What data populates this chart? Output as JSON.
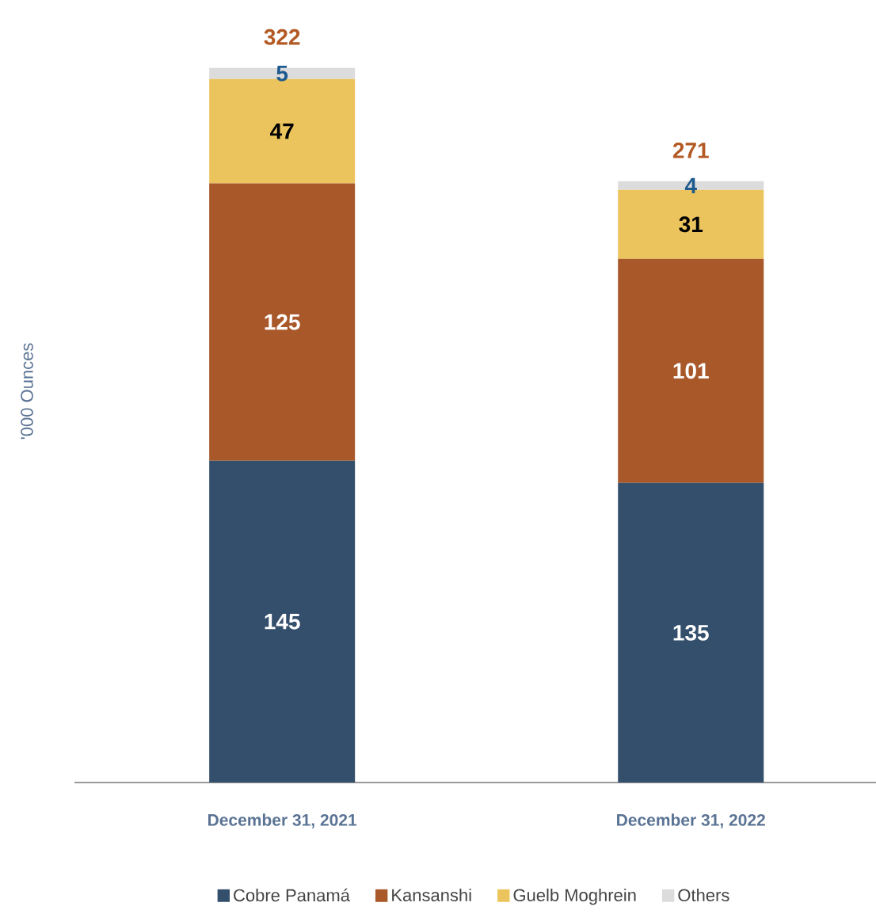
{
  "chart_data": {
    "type": "bar",
    "stacked": true,
    "ylabel": "'000 Ounces",
    "categories": [
      "December 31, 2021",
      "December 31, 2022"
    ],
    "series": [
      {
        "name": "Cobre Panamá",
        "color": "#344f6c",
        "values": [
          145,
          135
        ]
      },
      {
        "name": "Kansanshi",
        "color": "#a9582a",
        "values": [
          125,
          101
        ]
      },
      {
        "name": "Guelb Moghrein",
        "color": "#ecc45d",
        "values": [
          47,
          31
        ]
      },
      {
        "name": "Others",
        "color": "#dcdcdc",
        "values": [
          5,
          4
        ]
      }
    ],
    "data_labels": true,
    "totals": [
      "322",
      "271"
    ],
    "legend": "bottom",
    "grid": false,
    "tick_labels": "x"
  }
}
